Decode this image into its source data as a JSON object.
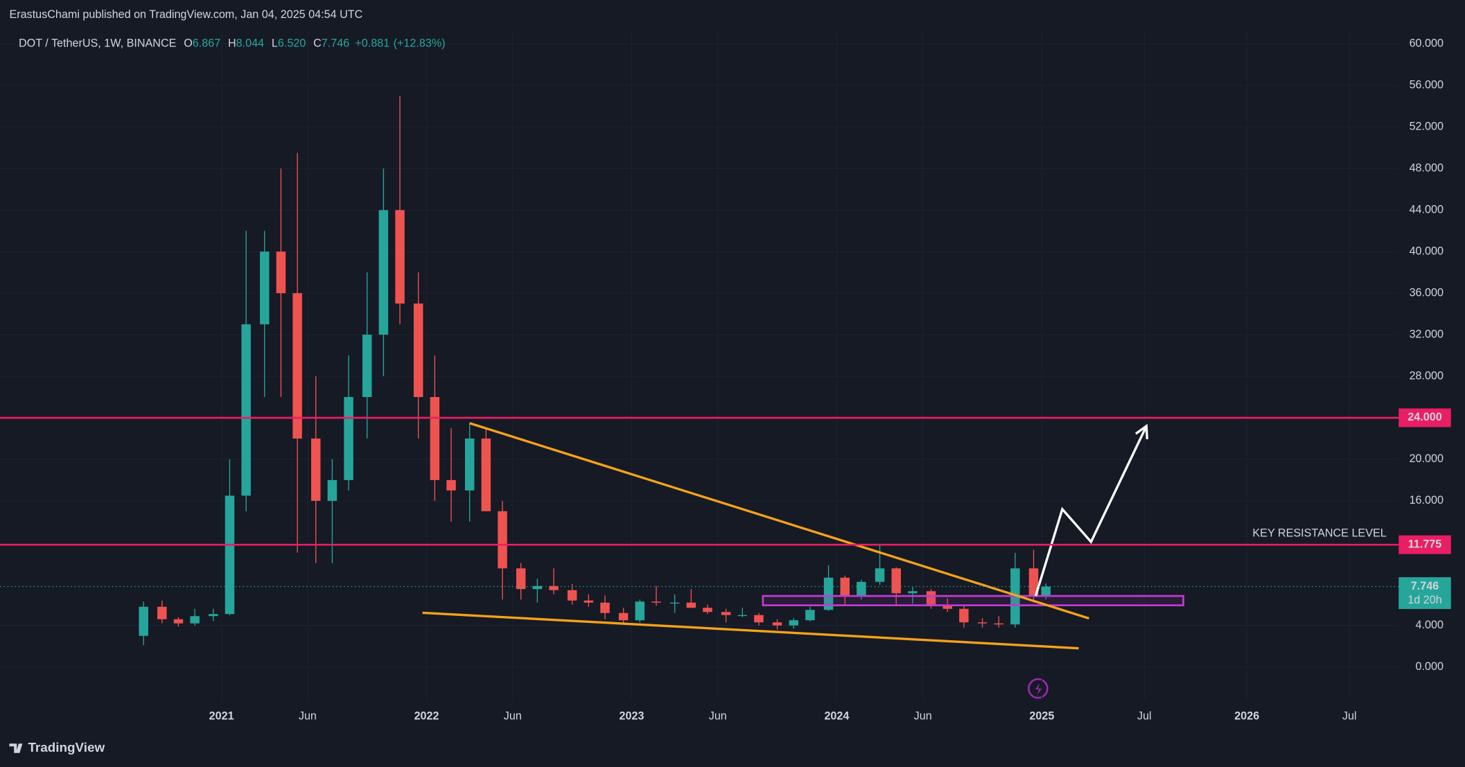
{
  "header": {
    "publisher": "ErastusChami published on TradingView.com, Jan 04, 2025 04:54 UTC",
    "brand": "TradingView"
  },
  "chart_data": {
    "type": "candlestick",
    "symbol": "DOT / TetherUS, 1W, BINANCE",
    "ohlc_legend": {
      "open_tag": "O",
      "open": 6.867,
      "high_tag": "H",
      "high": 8.044,
      "low_tag": "L",
      "low": {
        "value": 6.52,
        "label": "6.520"
      },
      "close_tag": "C",
      "close": 7.746,
      "change": {
        "value": 0.881,
        "label": "+0.881"
      },
      "change_pct": {
        "value": 12.83,
        "label": "(+12.83%)"
      }
    },
    "up_color": "#26a69a",
    "down_color": "#ef5350",
    "background": "#161a25",
    "grid": true,
    "xlim": [
      2019.92,
      2026.74
    ],
    "ylim": [
      -3.24,
      61.26
    ],
    "xticks": [
      {
        "value": 2021,
        "label": "2021"
      },
      {
        "value": 2021.42,
        "label": "Jun"
      },
      {
        "value": 2022,
        "label": "2022"
      },
      {
        "value": 2022.42,
        "label": "Jun"
      },
      {
        "value": 2023,
        "label": "2023"
      },
      {
        "value": 2023.42,
        "label": "Jun"
      },
      {
        "value": 2024,
        "label": "2024"
      },
      {
        "value": 2024.42,
        "label": "Jun"
      },
      {
        "value": 2025,
        "label": "2025"
      },
      {
        "value": 2025.5,
        "label": "Jul"
      },
      {
        "value": 2026,
        "label": "2026"
      },
      {
        "value": 2026.5,
        "label": "Jul"
      }
    ],
    "yticks": [
      {
        "value": 0,
        "label": "0.000"
      },
      {
        "value": 4,
        "label": "4.000"
      },
      {
        "value": 16,
        "label": "16.000"
      },
      {
        "value": 20,
        "label": "20.000"
      },
      {
        "value": 28,
        "label": "28.000"
      },
      {
        "value": 32,
        "label": "32.000"
      },
      {
        "value": 36,
        "label": "36.000"
      },
      {
        "value": 40,
        "label": "40.000"
      },
      {
        "value": 44,
        "label": "44.000"
      },
      {
        "value": 48,
        "label": "48.000"
      },
      {
        "value": 52,
        "label": "52.000"
      },
      {
        "value": 56,
        "label": "56.000"
      },
      {
        "value": 60,
        "label": "60.000"
      }
    ],
    "x": [
      2020.62,
      2020.71,
      2020.79,
      2020.87,
      2020.96,
      2021.04,
      2021.12,
      2021.21,
      2021.29,
      2021.37,
      2021.46,
      2021.54,
      2021.62,
      2021.71,
      2021.79,
      2021.87,
      2021.96,
      2022.04,
      2022.12,
      2022.21,
      2022.29,
      2022.37,
      2022.46,
      2022.54,
      2022.62,
      2022.71,
      2022.79,
      2022.87,
      2022.96,
      2023.04,
      2023.12,
      2023.21,
      2023.29,
      2023.37,
      2023.46,
      2023.54,
      2023.62,
      2023.71,
      2023.79,
      2023.87,
      2023.96,
      2024.04,
      2024.12,
      2024.21,
      2024.29,
      2024.37,
      2024.46,
      2024.54,
      2024.62,
      2024.71,
      2024.79,
      2024.87,
      2024.96,
      2025.02
    ],
    "open": [
      3.0,
      5.8,
      4.6,
      4.2,
      4.9,
      5.1,
      16.5,
      33,
      40,
      36,
      22,
      16,
      18,
      26,
      32,
      44,
      35,
      26,
      18,
      17,
      22,
      15,
      9.5,
      7.5,
      7.8,
      7.4,
      6.4,
      6.2,
      5.2,
      4.5,
      6.3,
      6.2,
      6.2,
      5.7,
      5.3,
      5.0,
      5.0,
      4.3,
      4.0,
      4.5,
      5.5,
      8.6,
      6.8,
      8.2,
      9.5,
      7.1,
      7.3,
      5.9,
      5.6,
      4.3,
      4.2,
      4.1,
      9.5,
      6.867
    ],
    "high": [
      6.3,
      6.4,
      4.8,
      5.6,
      5.6,
      20,
      42,
      42,
      48,
      49.5,
      28,
      20,
      30,
      38,
      48,
      55,
      38,
      30,
      23,
      23.5,
      23,
      16,
      10,
      8.5,
      9.5,
      8,
      7,
      6.9,
      5.7,
      6.5,
      7.8,
      7,
      7.5,
      6,
      5.6,
      5.7,
      5.2,
      4.6,
      4.7,
      5.8,
      9.8,
      8.8,
      8.4,
      11.7,
      9.6,
      7.7,
      7.5,
      6.6,
      5.9,
      4.7,
      4.9,
      11,
      11.3,
      8.044
    ],
    "low": [
      2.1,
      4.2,
      3.9,
      4.0,
      4.4,
      5.0,
      15,
      26,
      26,
      11,
      10,
      10,
      17,
      22,
      28,
      33,
      22,
      16,
      14,
      14,
      15,
      6.5,
      6.5,
      6.2,
      7,
      6.0,
      5.8,
      4.6,
      4.2,
      4.3,
      5.9,
      5.2,
      5.7,
      5.1,
      4.3,
      4.8,
      4.0,
      3.6,
      3.7,
      4.4,
      5.4,
      6,
      6.5,
      7.9,
      6,
      6.1,
      5.6,
      5.3,
      3.8,
      3.8,
      3.8,
      3.8,
      6.2,
      6.52
    ],
    "close": [
      5.8,
      4.6,
      4.2,
      4.9,
      5.1,
      16.5,
      33,
      40,
      36,
      22,
      16,
      18,
      26,
      32,
      44,
      35,
      26,
      18,
      17,
      22,
      15,
      9.5,
      7.5,
      7.8,
      7.4,
      6.4,
      6.2,
      5.2,
      4.5,
      6.3,
      6.2,
      6.2,
      5.7,
      5.3,
      5.0,
      5.0,
      4.3,
      4.0,
      4.5,
      5.5,
      8.6,
      6.8,
      8.2,
      9.5,
      7.1,
      7.3,
      5.9,
      5.6,
      4.3,
      4.2,
      4.1,
      9.5,
      6.9,
      7.746
    ],
    "levels": [
      {
        "value": 24,
        "label": "24.000",
        "color": "#e91e63"
      },
      {
        "value": 11.775,
        "label": "11.775",
        "color": "#e91e63",
        "note": "KEY RESISTANCE LEVEL",
        "note_color": "#f7a21b"
      }
    ],
    "last_price": {
      "value": 7.746,
      "label": "7.746",
      "countdown": "1d 20h",
      "color": "#26a69a"
    },
    "trendlines": [
      {
        "x": [
          2022.21,
          2025.23
        ],
        "y": [
          23.48,
          4.68
        ],
        "color": "#f7a21b"
      },
      {
        "x": [
          2021.98,
          2025.18
        ],
        "y": [
          5.22,
          1.8
        ],
        "color": "#f7a21b"
      }
    ],
    "zone": {
      "x": [
        2023.64,
        2025.69
      ],
      "y": [
        5.94,
        6.84
      ],
      "color": "#c03ccf"
    },
    "projection": {
      "x": [
        2024.97,
        2025.1,
        2025.24,
        2025.51
      ],
      "y": [
        6.84,
        15.2,
        12.05,
        23.2
      ],
      "color": "#ffffff"
    }
  }
}
